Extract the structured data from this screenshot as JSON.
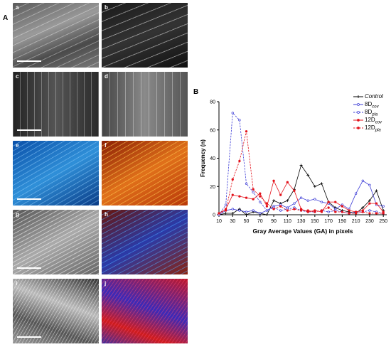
{
  "panel_a_label": "A",
  "panel_b_label": "B",
  "images": [
    {
      "label": "a",
      "kind": "gray-fibers"
    },
    {
      "label": "b",
      "kind": "gray-dark"
    },
    {
      "label": "c",
      "kind": "gray-stripes-dark"
    },
    {
      "label": "d",
      "kind": "gray-stripes"
    },
    {
      "label": "e",
      "kind": "blue-fibers"
    },
    {
      "label": "f",
      "kind": "orange-fibers"
    },
    {
      "label": "g",
      "kind": "gray-fibers-light"
    },
    {
      "label": "h",
      "kind": "blue-red-fibers"
    },
    {
      "label": "i",
      "kind": "gray-wavy"
    },
    {
      "label": "j",
      "kind": "red-blue-wavy"
    }
  ],
  "colors": {
    "control": "#000000",
    "blue": "#3b3bd6",
    "red": "#e3121b"
  },
  "chart_data": {
    "type": "line",
    "xlabel": "Gray Average Values  (GA) in pixels",
    "ylabel": "Frequency (n)",
    "xlim": [
      10,
      255
    ],
    "ylim": [
      0,
      80
    ],
    "xticks": [
      "10",
      "30",
      "50",
      "70",
      "90",
      "110",
      "130",
      "150",
      "170",
      "190",
      "210",
      "230",
      "250"
    ],
    "yticks": [
      "0",
      "20",
      "40",
      "60",
      "80"
    ],
    "x": [
      10,
      20,
      30,
      40,
      50,
      60,
      70,
      80,
      90,
      100,
      110,
      120,
      130,
      140,
      150,
      160,
      170,
      180,
      190,
      200,
      210,
      220,
      230,
      240,
      250
    ],
    "series": [
      {
        "name": "Control",
        "style": "solid",
        "marker": "plus",
        "color": "#000000",
        "values": [
          0,
          1,
          1,
          4,
          0,
          2,
          1,
          0,
          10,
          8,
          10,
          18,
          35,
          28,
          20,
          22,
          9,
          5,
          3,
          2,
          1,
          5,
          10,
          17,
          3
        ]
      },
      {
        "name_main": "8D",
        "name_sub": "cov",
        "style": "solid",
        "marker": "circle",
        "color": "#3b3bd6",
        "values": [
          0,
          3,
          4,
          3,
          2,
          3,
          1,
          3,
          6,
          7,
          5,
          8,
          12,
          10,
          11,
          9,
          8,
          4,
          7,
          4,
          15,
          24,
          21,
          7,
          6
        ]
      },
      {
        "name_main": "8D",
        "name_sub": "pla",
        "style": "dashed",
        "marker": "circle",
        "color": "#3b3bd6",
        "values": [
          0,
          7,
          72,
          67,
          22,
          16,
          9,
          3,
          5,
          3,
          4,
          5,
          3,
          2,
          2,
          3,
          2,
          3,
          2,
          1,
          2,
          2,
          3,
          2,
          1
        ]
      },
      {
        "name_main": "12D",
        "name_sub": "cov",
        "style": "solid",
        "marker": "circle-filled",
        "color": "#e3121b",
        "values": [
          1,
          4,
          14,
          13,
          12,
          11,
          15,
          6,
          24,
          14,
          23,
          17,
          4,
          2,
          3,
          2,
          9,
          9,
          6,
          3,
          2,
          3,
          8,
          8,
          2
        ]
      },
      {
        "name_main": "12D",
        "name_sub": "pla",
        "style": "dashed",
        "marker": "circle-filled",
        "color": "#e3121b",
        "values": [
          1,
          3,
          25,
          38,
          59,
          18,
          13,
          8,
          4,
          6,
          3,
          4,
          3,
          3,
          2,
          3,
          5,
          2,
          2,
          1,
          1,
          2,
          1,
          1,
          1
        ]
      }
    ]
  }
}
